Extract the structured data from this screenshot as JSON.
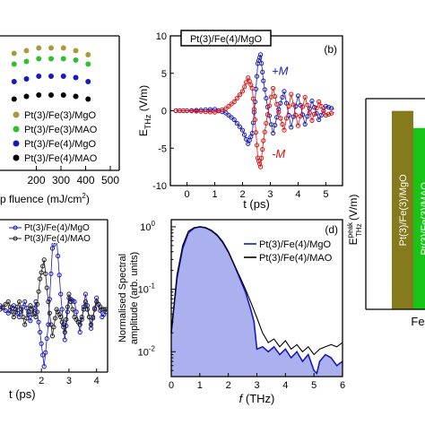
{
  "chart_data": [
    {
      "id": "a",
      "type": "scatter",
      "xlabel_visible": "p fluence (mJ/cm",
      "xlabel_sup": "2",
      "xlabel_end": ")",
      "x_tick_labels": [
        "200",
        "300",
        "400",
        "500"
      ],
      "xlim": [
        100,
        500
      ],
      "legend_position": "bottom-left",
      "series": [
        {
          "name": "Pt(3)/Fe(3)/MgO",
          "color": "#a99a3c",
          "x": [
            110,
            160,
            210,
            260,
            310,
            360,
            410
          ],
          "y": [
            0.87,
            0.89,
            0.91,
            0.91,
            0.91,
            0.89,
            0.86
          ]
        },
        {
          "name": "Pt(3)/Fe(3)/MAO",
          "color": "#2ec02e",
          "x": [
            110,
            160,
            210,
            260,
            310,
            360,
            410
          ],
          "y": [
            0.79,
            0.81,
            0.83,
            0.83,
            0.83,
            0.82,
            0.79
          ]
        },
        {
          "name": "Pt(3)/Fe(4)/MgO",
          "color": "#1a1ab8",
          "x": [
            110,
            160,
            210,
            260,
            310,
            360,
            410
          ],
          "y": [
            0.66,
            0.68,
            0.7,
            0.7,
            0.7,
            0.69,
            0.66
          ]
        },
        {
          "name": "Pt(3)/Fe(4)/MAO",
          "color": "#000000",
          "x": [
            110,
            160,
            210,
            260,
            310,
            360,
            410
          ],
          "y": [
            0.53,
            0.55,
            0.56,
            0.56,
            0.56,
            0.55,
            0.53
          ]
        }
      ]
    },
    {
      "id": "b",
      "type": "line",
      "panel_label": "(b)",
      "inset_label": "Pt(3)/Fe(4)/MgO",
      "ylabel": "E",
      "ylabel_sub": "THz",
      "ylabel_unit": " (V/m)",
      "xlabel": "t (ps)",
      "xlim": [
        -0.6,
        5.6
      ],
      "ylim": [
        -10,
        10
      ],
      "x_ticks": [
        0,
        1,
        2,
        3,
        4,
        5
      ],
      "y_ticks": [
        -10,
        -5,
        0,
        5,
        10
      ],
      "annotations": [
        {
          "text": "+M",
          "color": "#1a1ab8",
          "x": 3.05,
          "y": 4.8
        },
        {
          "text": "-M",
          "color": "#dd1111",
          "x": 3.05,
          "y": -6.3
        }
      ],
      "series": [
        {
          "name": "+M",
          "color": "#1a1ab8",
          "x": [
            -0.4,
            0.0,
            0.5,
            1.0,
            1.4,
            1.7,
            2.0,
            2.2,
            2.35,
            2.45,
            2.55,
            2.65,
            2.75,
            2.9,
            3.1,
            3.3,
            3.5,
            3.75,
            4.0,
            4.25,
            4.5,
            4.75,
            5.0,
            5.3
          ],
          "y": [
            0,
            0,
            0.1,
            0.2,
            -0.3,
            -1.2,
            -2.6,
            -4.4,
            -3.0,
            1.2,
            6.3,
            7.5,
            4.0,
            0.5,
            -3.0,
            0.2,
            2.6,
            -2.2,
            2.0,
            -1.8,
            1.3,
            -1.2,
            0.6,
            0.2
          ]
        },
        {
          "name": "-M",
          "color": "#dd1111",
          "x": [
            -0.4,
            0.0,
            0.5,
            1.0,
            1.4,
            1.7,
            2.0,
            2.2,
            2.35,
            2.45,
            2.55,
            2.65,
            2.75,
            2.9,
            3.1,
            3.3,
            3.5,
            3.75,
            4.0,
            4.25,
            4.5,
            4.75,
            5.0,
            5.3
          ],
          "y": [
            0,
            0,
            -0.1,
            -0.2,
            0.3,
            1.2,
            2.6,
            4.4,
            3.0,
            -1.2,
            -6.3,
            -7.5,
            -4.0,
            -0.5,
            3.0,
            -0.2,
            -2.6,
            2.2,
            -2.0,
            1.8,
            -1.3,
            1.2,
            -0.6,
            -0.2
          ]
        }
      ]
    },
    {
      "id": "c",
      "type": "line",
      "xlabel": "t (ps)",
      "x_tick_labels": [
        "2",
        "3",
        "4"
      ],
      "xlim": [
        0.5,
        4.4
      ],
      "legend_position": "top",
      "series": [
        {
          "name": "Pt(3)/Fe(4)/MgO",
          "color": "#1a1ab8",
          "x": [
            0.5,
            0.8,
            1.0,
            1.2,
            1.4,
            1.6,
            1.8,
            1.95,
            2.1,
            2.25,
            2.4,
            2.55,
            2.7,
            2.85,
            3.0,
            3.2,
            3.4,
            3.6,
            3.8,
            4.0,
            4.2,
            4.4
          ],
          "y": [
            0.05,
            -0.05,
            0.05,
            -0.1,
            0.1,
            -0.15,
            0.1,
            -0.3,
            -0.75,
            -0.2,
            0.8,
            0.95,
            0.2,
            -0.4,
            0.15,
            0.1,
            -0.3,
            0.2,
            -0.25,
            0.15,
            -0.1,
            0.0
          ]
        },
        {
          "name": "Pt(3)/Fe(4)/MAO",
          "color": "#222222",
          "x": [
            0.5,
            0.8,
            1.0,
            1.2,
            1.4,
            1.6,
            1.8,
            1.95,
            2.1,
            2.25,
            2.4,
            2.55,
            2.7,
            2.85,
            3.0,
            3.2,
            3.4,
            3.6,
            3.8,
            4.0,
            4.2,
            4.4
          ],
          "y": [
            0.0,
            0.1,
            -0.1,
            0.1,
            -0.2,
            0.05,
            -0.1,
            0.4,
            0.65,
            0.1,
            -0.35,
            0.0,
            -0.1,
            -0.3,
            0.2,
            -0.1,
            -0.2,
            0.1,
            -0.2,
            0.1,
            0.0,
            0.0
          ]
        }
      ]
    },
    {
      "id": "d",
      "type": "area",
      "panel_label": "(d)",
      "ylabel_line1": "Normalised Spectral",
      "ylabel_line2": "amplitude (arb. units)",
      "xlabel_italic": "f",
      "xlabel_rest": " (THz)",
      "xlim": [
        0,
        6
      ],
      "ylim": [
        0.004,
        1.3
      ],
      "yscale": "log",
      "x_ticks": [
        0,
        1,
        2,
        3,
        4,
        5,
        6
      ],
      "y_tick_base": "10",
      "y_tick_exponents": [
        "-2",
        "-1",
        "0"
      ],
      "legend_position": "top-right",
      "series": [
        {
          "name": "Pt(3)/Fe(4)/MgO",
          "color": "#1a1ab8",
          "fill": "#aab1ee",
          "x": [
            0.0,
            0.2,
            0.4,
            0.6,
            0.8,
            1.0,
            1.2,
            1.4,
            1.6,
            1.8,
            2.0,
            2.2,
            2.4,
            2.6,
            2.8,
            2.9,
            3.0,
            3.2,
            3.4,
            3.6,
            3.8,
            4.0,
            4.2,
            4.4,
            4.6,
            4.8,
            5.0,
            5.1,
            5.2,
            5.4,
            5.6,
            5.8,
            6.0
          ],
          "y": [
            0.02,
            0.15,
            0.45,
            0.8,
            0.95,
            1.0,
            0.97,
            0.88,
            0.75,
            0.58,
            0.4,
            0.25,
            0.15,
            0.09,
            0.045,
            0.03,
            0.011,
            0.012,
            0.01,
            0.012,
            0.009,
            0.011,
            0.008,
            0.01,
            0.007,
            0.009,
            0.005,
            0.0045,
            0.007,
            0.009,
            0.008,
            0.006,
            0.007
          ]
        },
        {
          "name": "Pt(3)/Fe(4)/MAO",
          "color": "#000000",
          "x": [
            0.0,
            0.2,
            0.4,
            0.6,
            0.8,
            1.0,
            1.2,
            1.4,
            1.6,
            1.8,
            2.0,
            2.2,
            2.4,
            2.6,
            2.8,
            3.0,
            3.2,
            3.4,
            3.6,
            3.8,
            4.0,
            4.2,
            4.4,
            4.6,
            4.8,
            5.0,
            5.2,
            5.4,
            5.6,
            5.8,
            6.0
          ],
          "y": [
            0.02,
            0.17,
            0.5,
            0.85,
            0.97,
            1.0,
            0.96,
            0.86,
            0.73,
            0.56,
            0.39,
            0.25,
            0.16,
            0.1,
            0.06,
            0.035,
            0.02,
            0.014,
            0.016,
            0.012,
            0.015,
            0.011,
            0.013,
            0.01,
            0.012,
            0.009,
            0.011,
            0.012,
            0.013,
            0.012,
            0.014
          ]
        }
      ]
    },
    {
      "id": "e",
      "type": "bar",
      "ylabel_base": "E",
      "ylabel_sup": "peak",
      "ylabel_sub": "THz",
      "ylabel_unit": " (V/m)",
      "x_tick_label": "Fe",
      "ylim": [
        0,
        8.6
      ],
      "bars": [
        {
          "label": "Pt(3)/Fe(3)/MgO",
          "value": 8.1,
          "color": "#857a1c"
        },
        {
          "label": "Pt(3)/Fe(3)/MAO",
          "value": 7.4,
          "color": "#19c419"
        }
      ]
    }
  ]
}
